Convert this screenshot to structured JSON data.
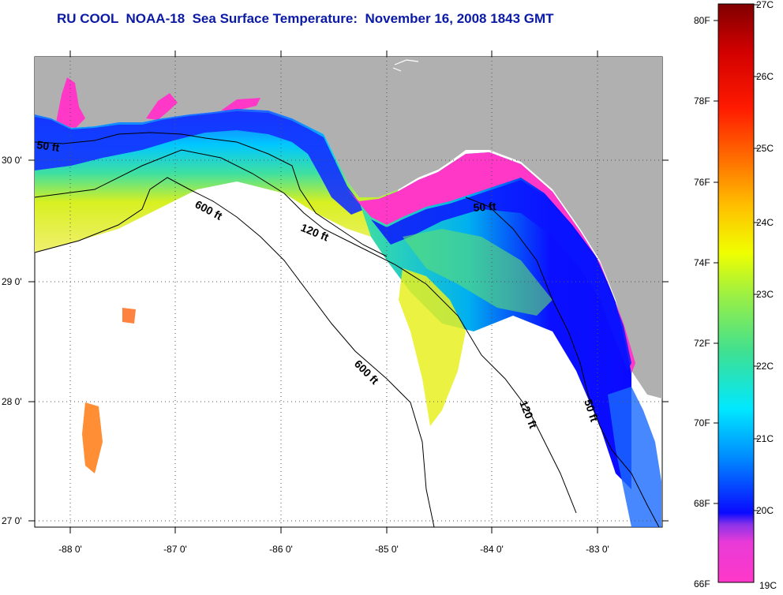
{
  "title": "RU COOL  NOAA-18  Sea Surface Temperature:  November 16, 2008 1843 GMT",
  "map": {
    "lon_ticks": [
      "-88 0'",
      "-87 0'",
      "-86 0'",
      "-85 0'",
      "-84 0'",
      "-83 0'"
    ],
    "lat_ticks": [
      "30 0'",
      "29 0'",
      "28 0'",
      "27 0'"
    ],
    "contours": [
      "50 ft",
      "600 ft",
      "120 ft",
      "50 ft",
      "600 ft",
      "120 ft",
      "50 ft"
    ],
    "colors": {
      "land": "#b0b0b0",
      "ocean_nodata": "#ffffff",
      "contour": "#000000"
    }
  },
  "colorbar": {
    "f_labels": [
      "80F",
      "78F",
      "76F",
      "74F",
      "72F",
      "70F",
      "68F",
      "66F"
    ],
    "c_labels": [
      "27C",
      "26C",
      "25C",
      "24C",
      "23C",
      "22C",
      "21C",
      "20C",
      "19C"
    ],
    "stops": [
      "#ff38c8",
      "#d838e0",
      "#8a33e8",
      "#0a0aff",
      "#00a0ff",
      "#00e8ff",
      "#3ce0a0",
      "#9cf050",
      "#f0ff00",
      "#ffb000",
      "#ff5000",
      "#ff0000",
      "#c00000",
      "#800000"
    ]
  }
}
